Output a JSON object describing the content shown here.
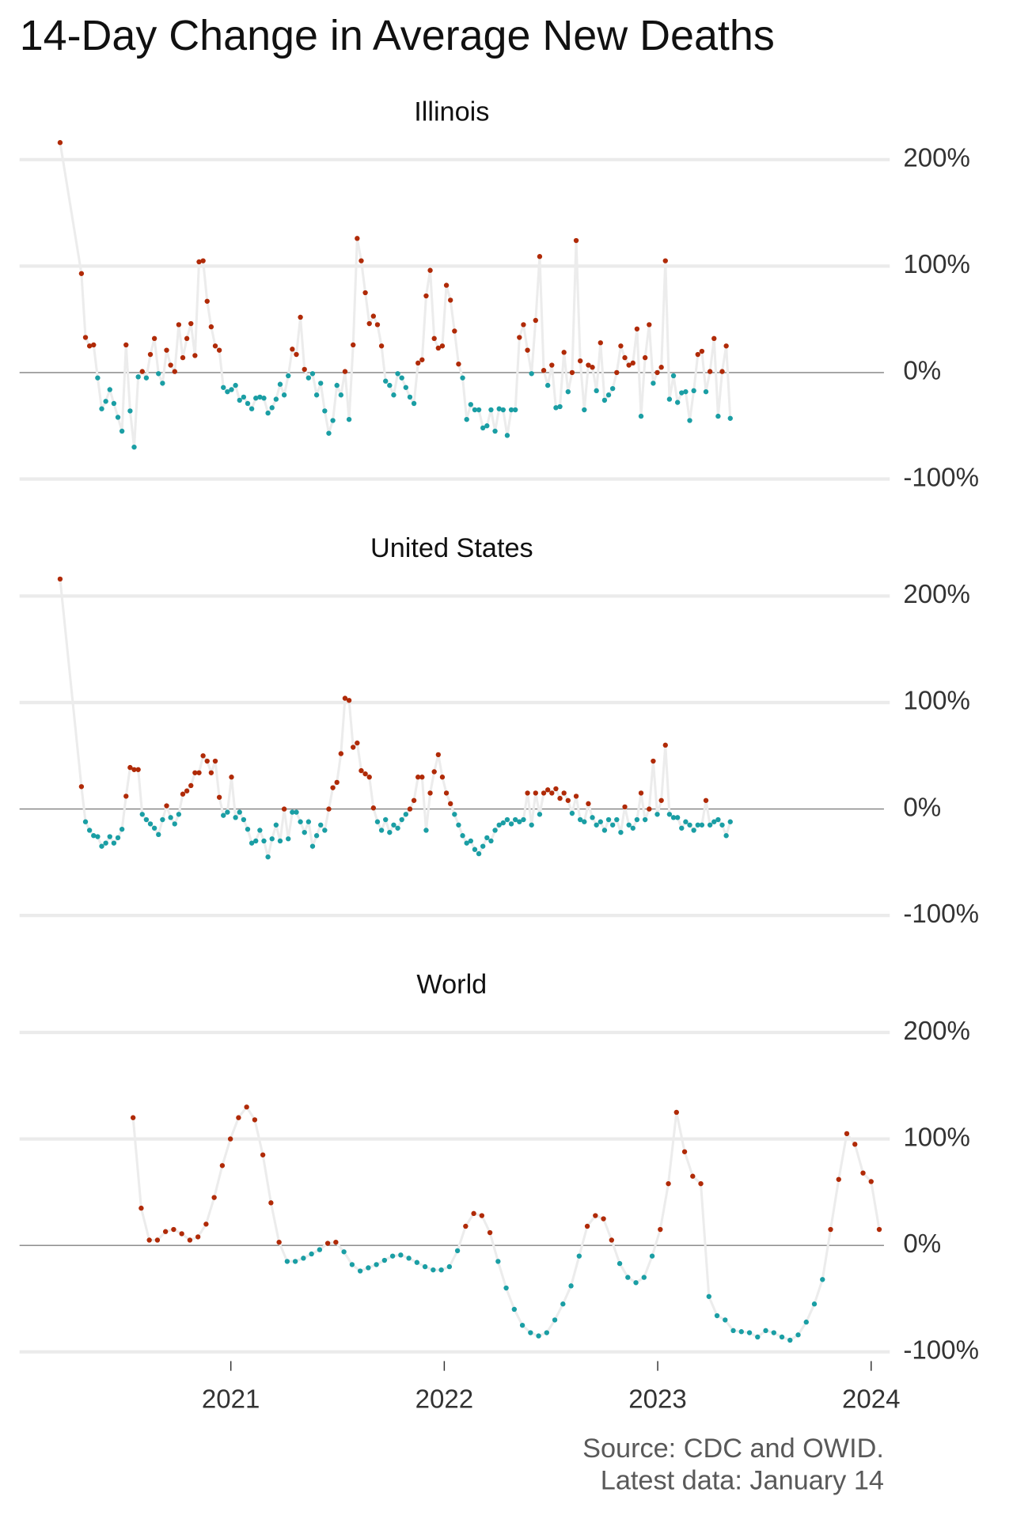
{
  "title": "14-Day Change in Average New Deaths",
  "caption_lines": [
    "Source: CDC and OWID.",
    "Latest data: January 14"
  ],
  "chart_data": [
    {
      "type": "line",
      "title": "Illinois",
      "x": [
        2020.2,
        2020.3,
        2020.319,
        2020.338,
        2020.357,
        2020.376,
        2020.395,
        2020.414,
        2020.433,
        2020.452,
        2020.471,
        2020.49,
        2020.509,
        2020.528,
        2020.547,
        2020.566,
        2020.585,
        2020.604,
        2020.623,
        2020.642,
        2020.661,
        2020.68,
        2020.699,
        2020.718,
        2020.737,
        2020.756,
        2020.775,
        2020.794,
        2020.813,
        2020.832,
        2020.851,
        2020.87,
        2020.889,
        2020.908,
        2020.927,
        2020.946,
        2020.965,
        2020.984,
        2021.003,
        2021.022,
        2021.041,
        2021.06,
        2021.079,
        2021.098,
        2021.117,
        2021.136,
        2021.155,
        2021.174,
        2021.193,
        2021.212,
        2021.231,
        2021.25,
        2021.269,
        2021.288,
        2021.307,
        2021.326,
        2021.345,
        2021.364,
        2021.383,
        2021.402,
        2021.421,
        2021.44,
        2021.459,
        2021.478,
        2021.497,
        2021.516,
        2021.535,
        2021.554,
        2021.573,
        2021.592,
        2021.611,
        2021.63,
        2021.649,
        2021.668,
        2021.687,
        2021.706,
        2021.725,
        2021.744,
        2021.763,
        2021.782,
        2021.801,
        2021.82,
        2021.839,
        2021.858,
        2021.877,
        2021.896,
        2021.915,
        2021.934,
        2021.953,
        2021.972,
        2021.991,
        2022.01,
        2022.029,
        2022.048,
        2022.067,
        2022.086,
        2022.105,
        2022.124,
        2022.143,
        2022.162,
        2022.181,
        2022.2,
        2022.219,
        2022.238,
        2022.257,
        2022.276,
        2022.295,
        2022.314,
        2022.333,
        2022.352,
        2022.371,
        2022.39,
        2022.409,
        2022.428,
        2022.447,
        2022.466,
        2022.485,
        2022.504,
        2022.523,
        2022.542,
        2022.561,
        2022.58,
        2022.599,
        2022.618,
        2022.637,
        2022.656,
        2022.675,
        2022.694,
        2022.713,
        2022.732,
        2022.751,
        2022.77,
        2022.789,
        2022.808,
        2022.827,
        2022.846,
        2022.865,
        2022.884,
        2022.903,
        2022.922,
        2022.941,
        2022.96,
        2022.979,
        2022.998,
        2023.017,
        2023.036,
        2023.055,
        2023.074,
        2023.093,
        2023.112,
        2023.131,
        2023.15,
        2023.169,
        2023.188,
        2023.207,
        2023.226,
        2023.245,
        2023.264,
        2023.283,
        2023.302,
        2023.321,
        2023.34
      ],
      "values": [
        216,
        93,
        33,
        25,
        26,
        -5,
        -34,
        -27,
        -16,
        -29,
        -42,
        -55,
        26,
        -36,
        -70,
        -4,
        1,
        -5,
        17,
        32,
        -1,
        -10,
        21,
        7,
        1,
        45,
        14,
        32,
        46,
        16,
        104,
        105,
        67,
        43,
        25,
        21,
        -14,
        -18,
        -16,
        -12,
        -26,
        -23,
        -29,
        -34,
        -24,
        -23,
        -24,
        -38,
        -33,
        -25,
        -11,
        -21,
        -3,
        22,
        17,
        52,
        3,
        -5,
        -1,
        -21,
        -10,
        -36,
        -57,
        -45,
        -12,
        -21,
        1,
        -44,
        26,
        126,
        105,
        75,
        46,
        53,
        45,
        25,
        -8,
        -12,
        -21,
        -1,
        -5,
        -14,
        -23,
        -29,
        9,
        12,
        72,
        96,
        32,
        23,
        25,
        82,
        68,
        39,
        8,
        -5,
        -44,
        -30,
        -35,
        -35,
        -52,
        -50,
        -35,
        -55,
        -34,
        -35,
        -59,
        -35,
        -35,
        33,
        45,
        21,
        -1,
        49,
        109,
        2,
        -12,
        7,
        -33,
        -32,
        19,
        -18,
        0,
        124,
        11,
        -35,
        7,
        5,
        -17,
        28,
        -26,
        -21,
        -15,
        0,
        25,
        14,
        7,
        9,
        41,
        -41,
        14,
        45,
        -10,
        0,
        5,
        105,
        -25,
        -3,
        -28,
        -19,
        -18,
        -45,
        -17,
        17,
        20,
        -18,
        1,
        32,
        -41,
        1,
        25,
        -43
      ],
      "xlim": [
        2020.01,
        2024.06
      ],
      "ylim": [
        -105,
        218
      ],
      "yticks": [
        {
          "value": -100,
          "label": "-100%"
        },
        {
          "value": 0,
          "label": "0%"
        },
        {
          "value": 100,
          "label": "100%"
        },
        {
          "value": 200,
          "label": "200%"
        }
      ],
      "grid": true,
      "positive_color": "#b02a07",
      "negative_color": "#1a9ea4",
      "line_color": "#ececec",
      "zero_line_color": "#808080"
    },
    {
      "type": "line",
      "title": "United States",
      "x": [
        2020.2,
        2020.3,
        2020.319,
        2020.338,
        2020.357,
        2020.376,
        2020.395,
        2020.414,
        2020.433,
        2020.452,
        2020.471,
        2020.49,
        2020.509,
        2020.528,
        2020.547,
        2020.566,
        2020.585,
        2020.604,
        2020.623,
        2020.642,
        2020.661,
        2020.68,
        2020.699,
        2020.718,
        2020.737,
        2020.756,
        2020.775,
        2020.794,
        2020.813,
        2020.832,
        2020.851,
        2020.87,
        2020.889,
        2020.908,
        2020.927,
        2020.946,
        2020.965,
        2020.984,
        2021.003,
        2021.022,
        2021.041,
        2021.06,
        2021.079,
        2021.098,
        2021.117,
        2021.136,
        2021.155,
        2021.174,
        2021.193,
        2021.212,
        2021.231,
        2021.25,
        2021.269,
        2021.288,
        2021.307,
        2021.326,
        2021.345,
        2021.364,
        2021.383,
        2021.402,
        2021.421,
        2021.44,
        2021.459,
        2021.478,
        2021.497,
        2021.516,
        2021.535,
        2021.554,
        2021.573,
        2021.592,
        2021.611,
        2021.63,
        2021.649,
        2021.668,
        2021.687,
        2021.706,
        2021.725,
        2021.744,
        2021.763,
        2021.782,
        2021.801,
        2021.82,
        2021.839,
        2021.858,
        2021.877,
        2021.896,
        2021.915,
        2021.934,
        2021.953,
        2021.972,
        2021.991,
        2022.01,
        2022.029,
        2022.048,
        2022.067,
        2022.086,
        2022.105,
        2022.124,
        2022.143,
        2022.162,
        2022.181,
        2022.2,
        2022.219,
        2022.238,
        2022.257,
        2022.276,
        2022.295,
        2022.314,
        2022.333,
        2022.352,
        2022.371,
        2022.39,
        2022.409,
        2022.428,
        2022.447,
        2022.466,
        2022.485,
        2022.504,
        2022.523,
        2022.542,
        2022.561,
        2022.58,
        2022.599,
        2022.618,
        2022.637,
        2022.656,
        2022.675,
        2022.694,
        2022.713,
        2022.732,
        2022.751,
        2022.77,
        2022.789,
        2022.808,
        2022.827,
        2022.846,
        2022.865,
        2022.884,
        2022.903,
        2022.922,
        2022.941,
        2022.96,
        2022.979,
        2022.998,
        2023.017,
        2023.036,
        2023.055,
        2023.074,
        2023.093,
        2023.112,
        2023.131,
        2023.15,
        2023.169,
        2023.188,
        2023.207,
        2023.226,
        2023.245,
        2023.264,
        2023.283,
        2023.302,
        2023.321,
        2023.34
      ],
      "values": [
        216,
        21,
        -12,
        -20,
        -25,
        -26,
        -35,
        -32,
        -26,
        -32,
        -27,
        -19,
        12,
        39,
        37,
        37,
        -5,
        -10,
        -14,
        -18,
        -24,
        -10,
        3,
        -8,
        -14,
        -5,
        14,
        17,
        22,
        34,
        34,
        50,
        45,
        34,
        45,
        11,
        -6,
        -3,
        30,
        -8,
        -3,
        -10,
        -19,
        -32,
        -30,
        -20,
        -30,
        -45,
        -28,
        -15,
        -30,
        0,
        -28,
        -3,
        -3,
        -12,
        -22,
        -12,
        -35,
        -25,
        -15,
        -20,
        0,
        20,
        25,
        52,
        104,
        102,
        58,
        62,
        36,
        33,
        30,
        1,
        -12,
        -20,
        -10,
        -22,
        -15,
        -18,
        -10,
        -5,
        0,
        8,
        30,
        30,
        -20,
        15,
        35,
        51,
        30,
        15,
        5,
        -5,
        -15,
        -25,
        -32,
        -30,
        -38,
        -42,
        -35,
        -27,
        -30,
        -20,
        -15,
        -13,
        -10,
        -14,
        -10,
        -12,
        -10,
        15,
        -15,
        15,
        -5,
        15,
        18,
        15,
        19,
        10,
        15,
        8,
        -4,
        12,
        -10,
        -12,
        5,
        -8,
        -15,
        -12,
        -20,
        -10,
        -15,
        -10,
        -22,
        2,
        -15,
        -18,
        -10,
        15,
        -10,
        0,
        45,
        -5,
        8,
        60,
        -5,
        -8,
        -8,
        -18,
        -12,
        -15,
        -20,
        -15,
        -15,
        8,
        -15,
        -12,
        -10,
        -15,
        -25,
        -12
      ],
      "xlim": [
        2020.01,
        2024.06
      ],
      "ylim": [
        -105,
        218
      ],
      "yticks": [
        {
          "value": -100,
          "label": "-100%"
        },
        {
          "value": 0,
          "label": "0%"
        },
        {
          "value": 100,
          "label": "100%"
        },
        {
          "value": 200,
          "label": "200%"
        }
      ],
      "grid": true,
      "positive_color": "#b02a07",
      "negative_color": "#1a9ea4",
      "line_color": "#ececec",
      "zero_line_color": "#808080"
    },
    {
      "type": "line",
      "title": "World",
      "x": [
        2020.542,
        2020.58,
        2020.618,
        2020.656,
        2020.694,
        2020.732,
        2020.77,
        2020.808,
        2020.846,
        2020.884,
        2020.922,
        2020.96,
        2020.998,
        2021.036,
        2021.074,
        2021.112,
        2021.15,
        2021.188,
        2021.226,
        2021.264,
        2021.302,
        2021.34,
        2021.378,
        2021.416,
        2021.454,
        2021.492,
        2021.53,
        2021.568,
        2021.606,
        2021.644,
        2021.682,
        2021.72,
        2021.758,
        2021.796,
        2021.834,
        2021.872,
        2021.91,
        2021.948,
        2021.986,
        2022.024,
        2022.062,
        2022.1,
        2022.138,
        2022.176,
        2022.214,
        2022.252,
        2022.29,
        2022.328,
        2022.366,
        2022.404,
        2022.442,
        2022.48,
        2022.518,
        2022.556,
        2022.594,
        2022.632,
        2022.67,
        2022.708,
        2022.746,
        2022.784,
        2022.822,
        2022.86,
        2022.898,
        2022.936,
        2022.974,
        2023.012,
        2023.05,
        2023.088,
        2023.126,
        2023.164,
        2023.202,
        2023.24,
        2023.278,
        2023.316,
        2023.354,
        2023.392,
        2023.43,
        2023.468,
        2023.506,
        2023.544,
        2023.582,
        2023.62,
        2023.658,
        2023.696,
        2023.734,
        2023.772,
        2023.81,
        2023.848,
        2023.886,
        2023.924,
        2023.962,
        2024.0,
        2024.038
      ],
      "values": [
        120,
        35,
        5,
        5,
        13,
        15,
        11,
        5,
        8,
        20,
        45,
        75,
        100,
        120,
        130,
        118,
        85,
        40,
        3,
        -15,
        -15,
        -12,
        -8,
        -4,
        2,
        3,
        -6,
        -18,
        -24,
        -21,
        -18,
        -14,
        -10,
        -9,
        -12,
        -16,
        -20,
        -23,
        -23,
        -20,
        -5,
        18,
        30,
        28,
        12,
        -15,
        -40,
        -60,
        -75,
        -82,
        -85,
        -82,
        -70,
        -55,
        -38,
        -10,
        18,
        28,
        25,
        5,
        -17,
        -30,
        -35,
        -30,
        -10,
        15,
        58,
        125,
        88,
        65,
        58,
        -48,
        -66,
        -70,
        -80,
        -81,
        -82,
        -86,
        -80,
        -82,
        -86,
        -89,
        -84,
        -72,
        -55,
        -32,
        15,
        62,
        105,
        95,
        68,
        60,
        15
      ],
      "xlim": [
        2020.01,
        2024.06
      ],
      "ylim": [
        -105,
        218
      ],
      "xticks": [
        2021,
        2022,
        2023,
        2024
      ],
      "yticks": [
        {
          "value": -100,
          "label": "-100%"
        },
        {
          "value": 0,
          "label": "0%"
        },
        {
          "value": 100,
          "label": "100%"
        },
        {
          "value": 200,
          "label": "200%"
        }
      ],
      "grid": true,
      "positive_color": "#b02a07",
      "negative_color": "#1a9ea4",
      "line_color": "#ececec",
      "zero_line_color": "#808080"
    }
  ]
}
